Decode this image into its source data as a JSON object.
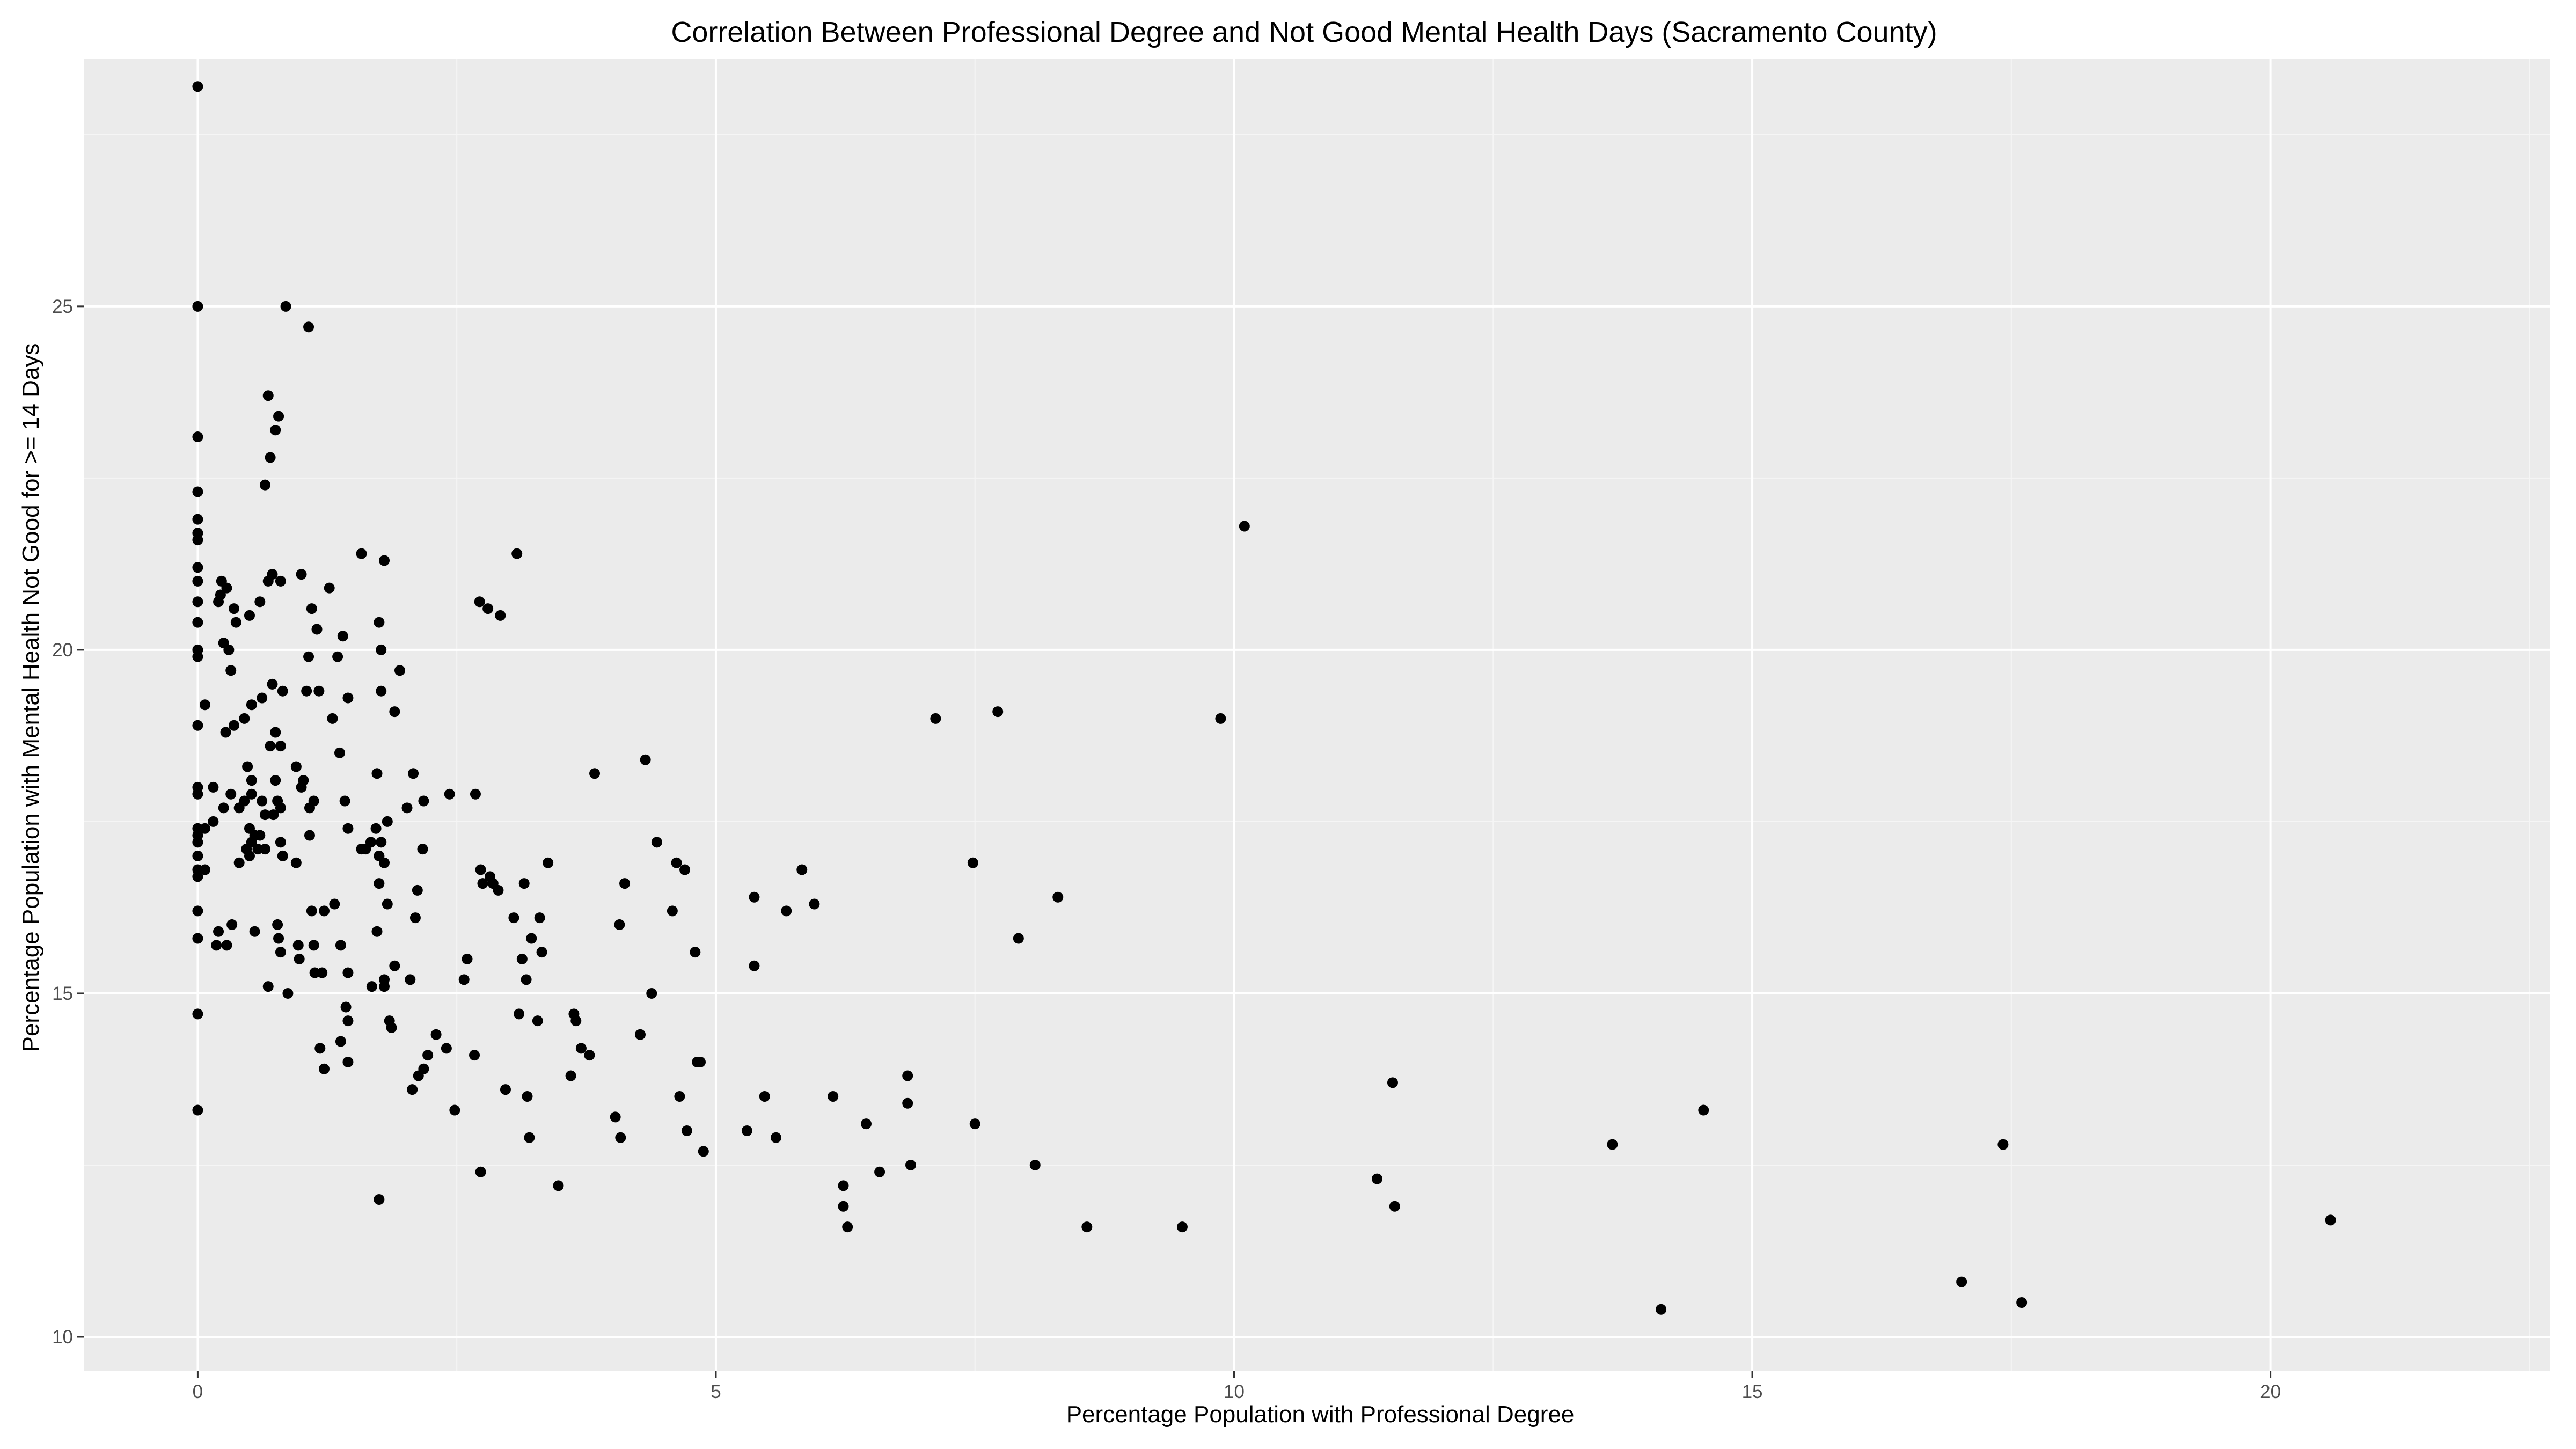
{
  "chart_data": {
    "type": "scatter",
    "title": "Correlation Between Professional Degree and Not Good Mental Health Days (Sacramento County)",
    "xlabel": "Percentage Population with Professional Degree",
    "ylabel": "Percentage Population with Mental Health Not Good for >= 14 Days",
    "xlim": [
      -1.1,
      22.7
    ],
    "ylim": [
      9.5,
      28.6
    ],
    "x_ticks": [
      0,
      5,
      10,
      15,
      20
    ],
    "y_ticks": [
      10,
      15,
      20,
      25
    ],
    "x_tick_labels": [
      "0",
      "5",
      "10",
      "15",
      "20"
    ],
    "y_tick_labels": [
      "10",
      "15",
      "20",
      "25"
    ],
    "grid": true,
    "legend": "none",
    "colors": {
      "panel": "#ebebeb",
      "grid_major": "#ffffff",
      "grid_minor": "#f5f5f5",
      "point": "#000000",
      "tick": "#333333"
    },
    "points": [
      [
        0,
        28.2
      ],
      [
        0,
        25.0
      ],
      [
        0,
        23.1
      ],
      [
        0,
        22.3
      ],
      [
        0,
        21.9
      ],
      [
        0,
        21.7
      ],
      [
        0,
        21.6
      ],
      [
        0,
        21.2
      ],
      [
        0,
        21.0
      ],
      [
        0,
        20.7
      ],
      [
        0,
        20.4
      ],
      [
        0,
        20.0
      ],
      [
        0,
        19.9
      ],
      [
        0,
        18.9
      ],
      [
        0,
        18.0
      ],
      [
        0,
        17.9
      ],
      [
        0,
        17.4
      ],
      [
        0,
        17.3
      ],
      [
        0,
        17.2
      ],
      [
        0,
        17.0
      ],
      [
        0,
        16.8
      ],
      [
        0,
        16.7
      ],
      [
        0,
        16.2
      ],
      [
        0,
        15.8
      ],
      [
        0,
        14.7
      ],
      [
        0,
        13.3
      ],
      [
        0.07,
        19.2
      ],
      [
        0.07,
        17.4
      ],
      [
        0.07,
        16.8
      ],
      [
        0.15,
        18.0
      ],
      [
        0.15,
        17.5
      ],
      [
        0.18,
        15.7
      ],
      [
        0.2,
        15.9
      ],
      [
        0.2,
        20.7
      ],
      [
        0.22,
        20.8
      ],
      [
        0.23,
        21.0
      ],
      [
        0.25,
        20.1
      ],
      [
        0.25,
        17.7
      ],
      [
        0.27,
        18.8
      ],
      [
        0.28,
        20.9
      ],
      [
        0.28,
        15.7
      ],
      [
        0.3,
        20.0
      ],
      [
        0.32,
        19.7
      ],
      [
        0.32,
        17.9
      ],
      [
        0.33,
        16.0
      ],
      [
        0.35,
        20.6
      ],
      [
        0.35,
        18.9
      ],
      [
        0.37,
        20.4
      ],
      [
        0.4,
        17.7
      ],
      [
        0.4,
        16.9
      ],
      [
        0.45,
        19.0
      ],
      [
        0.45,
        17.8
      ],
      [
        0.47,
        17.1
      ],
      [
        0.48,
        18.3
      ],
      [
        0.5,
        20.5
      ],
      [
        0.5,
        17.4
      ],
      [
        0.5,
        17.0
      ],
      [
        0.52,
        19.2
      ],
      [
        0.52,
        18.1
      ],
      [
        0.52,
        17.9
      ],
      [
        0.52,
        17.2
      ],
      [
        0.55,
        17.3
      ],
      [
        0.55,
        15.9
      ],
      [
        0.58,
        17.1
      ],
      [
        0.6,
        20.7
      ],
      [
        0.6,
        17.3
      ],
      [
        0.62,
        19.3
      ],
      [
        0.62,
        17.8
      ],
      [
        0.65,
        22.4
      ],
      [
        0.65,
        17.6
      ],
      [
        0.65,
        17.1
      ],
      [
        0.68,
        23.7
      ],
      [
        0.68,
        21.0
      ],
      [
        0.68,
        15.1
      ],
      [
        0.7,
        22.8
      ],
      [
        0.7,
        18.6
      ],
      [
        0.72,
        21.1
      ],
      [
        0.72,
        19.5
      ],
      [
        0.73,
        17.6
      ],
      [
        0.75,
        23.2
      ],
      [
        0.75,
        18.8
      ],
      [
        0.75,
        18.1
      ],
      [
        0.77,
        17.8
      ],
      [
        0.77,
        16.0
      ],
      [
        0.78,
        23.4
      ],
      [
        0.78,
        15.8
      ],
      [
        0.8,
        21.0
      ],
      [
        0.8,
        18.6
      ],
      [
        0.8,
        17.7
      ],
      [
        0.8,
        17.2
      ],
      [
        0.8,
        15.6
      ],
      [
        0.82,
        19.4
      ],
      [
        0.82,
        17.0
      ],
      [
        0.85,
        25.0
      ],
      [
        0.87,
        15.0
      ],
      [
        0.95,
        18.3
      ],
      [
        0.95,
        16.9
      ],
      [
        0.97,
        15.7
      ],
      [
        0.98,
        15.5
      ],
      [
        1.0,
        21.1
      ],
      [
        1.0,
        18.0
      ],
      [
        1.02,
        18.1
      ],
      [
        1.05,
        19.4
      ],
      [
        1.07,
        24.7
      ],
      [
        1.07,
        19.9
      ],
      [
        1.08,
        17.7
      ],
      [
        1.08,
        17.3
      ],
      [
        1.1,
        20.6
      ],
      [
        1.1,
        16.2
      ],
      [
        1.12,
        17.8
      ],
      [
        1.12,
        15.7
      ],
      [
        1.13,
        15.3
      ],
      [
        1.15,
        20.3
      ],
      [
        1.17,
        19.4
      ],
      [
        1.18,
        14.2
      ],
      [
        1.2,
        15.3
      ],
      [
        1.22,
        16.2
      ],
      [
        1.22,
        13.9
      ],
      [
        1.27,
        20.9
      ],
      [
        1.3,
        19.0
      ],
      [
        1.32,
        16.3
      ],
      [
        1.35,
        19.9
      ],
      [
        1.37,
        18.5
      ],
      [
        1.38,
        15.7
      ],
      [
        1.38,
        14.3
      ],
      [
        1.4,
        20.2
      ],
      [
        1.42,
        17.8
      ],
      [
        1.43,
        14.8
      ],
      [
        1.45,
        19.3
      ],
      [
        1.45,
        17.4
      ],
      [
        1.45,
        15.3
      ],
      [
        1.45,
        14.6
      ],
      [
        1.45,
        14.0
      ],
      [
        1.58,
        21.4
      ],
      [
        1.58,
        17.1
      ],
      [
        1.62,
        17.1
      ],
      [
        1.67,
        17.2
      ],
      [
        1.68,
        15.1
      ],
      [
        1.72,
        17.4
      ],
      [
        1.73,
        18.2
      ],
      [
        1.73,
        15.9
      ],
      [
        1.75,
        20.4
      ],
      [
        1.75,
        17.0
      ],
      [
        1.75,
        16.6
      ],
      [
        1.75,
        12.0
      ],
      [
        1.77,
        20.0
      ],
      [
        1.77,
        19.4
      ],
      [
        1.77,
        17.2
      ],
      [
        1.8,
        21.3
      ],
      [
        1.8,
        16.9
      ],
      [
        1.8,
        15.2
      ],
      [
        1.8,
        15.1
      ],
      [
        1.83,
        17.5
      ],
      [
        1.83,
        16.3
      ],
      [
        1.85,
        14.6
      ],
      [
        1.87,
        14.5
      ],
      [
        1.9,
        19.1
      ],
      [
        1.9,
        15.4
      ],
      [
        1.95,
        19.7
      ],
      [
        2.02,
        17.7
      ],
      [
        2.05,
        15.2
      ],
      [
        2.07,
        13.6
      ],
      [
        2.08,
        18.2
      ],
      [
        2.1,
        16.1
      ],
      [
        2.12,
        16.5
      ],
      [
        2.13,
        13.8
      ],
      [
        2.17,
        17.1
      ],
      [
        2.18,
        17.8
      ],
      [
        2.18,
        13.9
      ],
      [
        2.22,
        14.1
      ],
      [
        2.3,
        14.4
      ],
      [
        2.4,
        14.2
      ],
      [
        2.43,
        17.9
      ],
      [
        2.48,
        13.3
      ],
      [
        2.57,
        15.2
      ],
      [
        2.6,
        15.5
      ],
      [
        2.67,
        14.1
      ],
      [
        2.68,
        17.9
      ],
      [
        2.72,
        20.7
      ],
      [
        2.73,
        16.8
      ],
      [
        2.73,
        12.4
      ],
      [
        2.75,
        16.6
      ],
      [
        2.8,
        20.6
      ],
      [
        2.82,
        16.7
      ],
      [
        2.85,
        16.6
      ],
      [
        2.9,
        16.5
      ],
      [
        2.92,
        20.5
      ],
      [
        2.97,
        13.6
      ],
      [
        3.05,
        16.1
      ],
      [
        3.08,
        21.4
      ],
      [
        3.1,
        14.7
      ],
      [
        3.13,
        15.5
      ],
      [
        3.15,
        16.6
      ],
      [
        3.17,
        15.2
      ],
      [
        3.18,
        13.5
      ],
      [
        3.2,
        12.9
      ],
      [
        3.22,
        15.8
      ],
      [
        3.28,
        14.6
      ],
      [
        3.3,
        16.1
      ],
      [
        3.32,
        15.6
      ],
      [
        3.38,
        16.9
      ],
      [
        3.48,
        12.2
      ],
      [
        3.6,
        13.8
      ],
      [
        3.63,
        14.7
      ],
      [
        3.65,
        14.6
      ],
      [
        3.7,
        14.2
      ],
      [
        3.78,
        14.1
      ],
      [
        3.83,
        18.2
      ],
      [
        4.03,
        13.2
      ],
      [
        4.07,
        16.0
      ],
      [
        4.08,
        12.9
      ],
      [
        4.12,
        16.6
      ],
      [
        4.27,
        14.4
      ],
      [
        4.32,
        18.4
      ],
      [
        4.38,
        15.0
      ],
      [
        4.43,
        17.2
      ],
      [
        4.58,
        16.2
      ],
      [
        4.62,
        16.9
      ],
      [
        4.65,
        13.5
      ],
      [
        4.7,
        16.8
      ],
      [
        4.72,
        13.0
      ],
      [
        4.8,
        15.6
      ],
      [
        4.82,
        14.0
      ],
      [
        4.85,
        14.0
      ],
      [
        4.88,
        12.7
      ],
      [
        5.3,
        13.0
      ],
      [
        5.37,
        16.4
      ],
      [
        5.37,
        15.4
      ],
      [
        5.47,
        13.5
      ],
      [
        5.58,
        12.9
      ],
      [
        5.68,
        16.2
      ],
      [
        5.83,
        16.8
      ],
      [
        5.95,
        16.3
      ],
      [
        6.13,
        13.5
      ],
      [
        6.23,
        12.2
      ],
      [
        6.23,
        11.9
      ],
      [
        6.27,
        11.6
      ],
      [
        6.45,
        13.1
      ],
      [
        6.58,
        12.4
      ],
      [
        6.85,
        13.8
      ],
      [
        6.85,
        13.4
      ],
      [
        6.88,
        12.5
      ],
      [
        7.12,
        19.0
      ],
      [
        7.48,
        16.9
      ],
      [
        7.5,
        13.1
      ],
      [
        7.72,
        19.1
      ],
      [
        7.92,
        15.8
      ],
      [
        8.08,
        12.5
      ],
      [
        8.3,
        16.4
      ],
      [
        8.58,
        11.6
      ],
      [
        9.5,
        11.6
      ],
      [
        9.87,
        19.0
      ],
      [
        10.1,
        21.8
      ],
      [
        11.38,
        12.3
      ],
      [
        11.53,
        13.7
      ],
      [
        11.55,
        11.9
      ],
      [
        13.65,
        12.8
      ],
      [
        14.12,
        10.4
      ],
      [
        14.53,
        13.3
      ],
      [
        17.02,
        10.8
      ],
      [
        17.42,
        12.8
      ],
      [
        17.6,
        10.5
      ],
      [
        20.58,
        11.7
      ]
    ]
  }
}
